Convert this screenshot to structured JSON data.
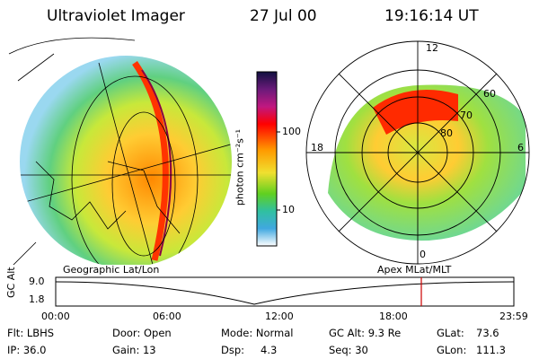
{
  "header": {
    "instrument": "Ultraviolet Imager",
    "date": "27 Jul 00",
    "time": "19:16:14 UT"
  },
  "colorbar": {
    "unit_label": "photon cm⁻²s⁻¹",
    "ticks": [
      "100",
      "10"
    ],
    "colors": [
      "#101040",
      "#6a1a7a",
      "#c01880",
      "#ff0000",
      "#ff9a00",
      "#f0e030",
      "#60d020",
      "#30c0a0",
      "#40a8e0",
      "#ffffff"
    ]
  },
  "left_panel": {
    "caption": "Geographic Lat/Lon"
  },
  "right_panel": {
    "caption": "Apex MLat/MLT",
    "mlt_labels": {
      "top": "12",
      "left": "18",
      "right": "6",
      "bottom": "0"
    },
    "mlat_labels": [
      "60",
      "70",
      "80"
    ]
  },
  "timeline": {
    "ylabel": "GC Alt",
    "y_ticks": [
      "9.0",
      "1.8"
    ],
    "x_ticks": [
      "00:00",
      "06:00",
      "12:00",
      "18:00",
      "23:59"
    ],
    "current_marker_color": "#cc0000"
  },
  "info": {
    "filter": "Flt: LBHS",
    "ip": "IP: 36.0",
    "door": "Door: Open",
    "gain": "Gain: 13",
    "mode": "Mode: Normal",
    "dsp_label": "Dsp:",
    "dsp_value": "4.3",
    "gc_alt": "GC Alt: 9.3 Re",
    "seq": "Seq: 30",
    "glat_label": "GLat:",
    "glat_value": "73.6",
    "glon_label": "GLon:",
    "glon_value": "111.3"
  }
}
